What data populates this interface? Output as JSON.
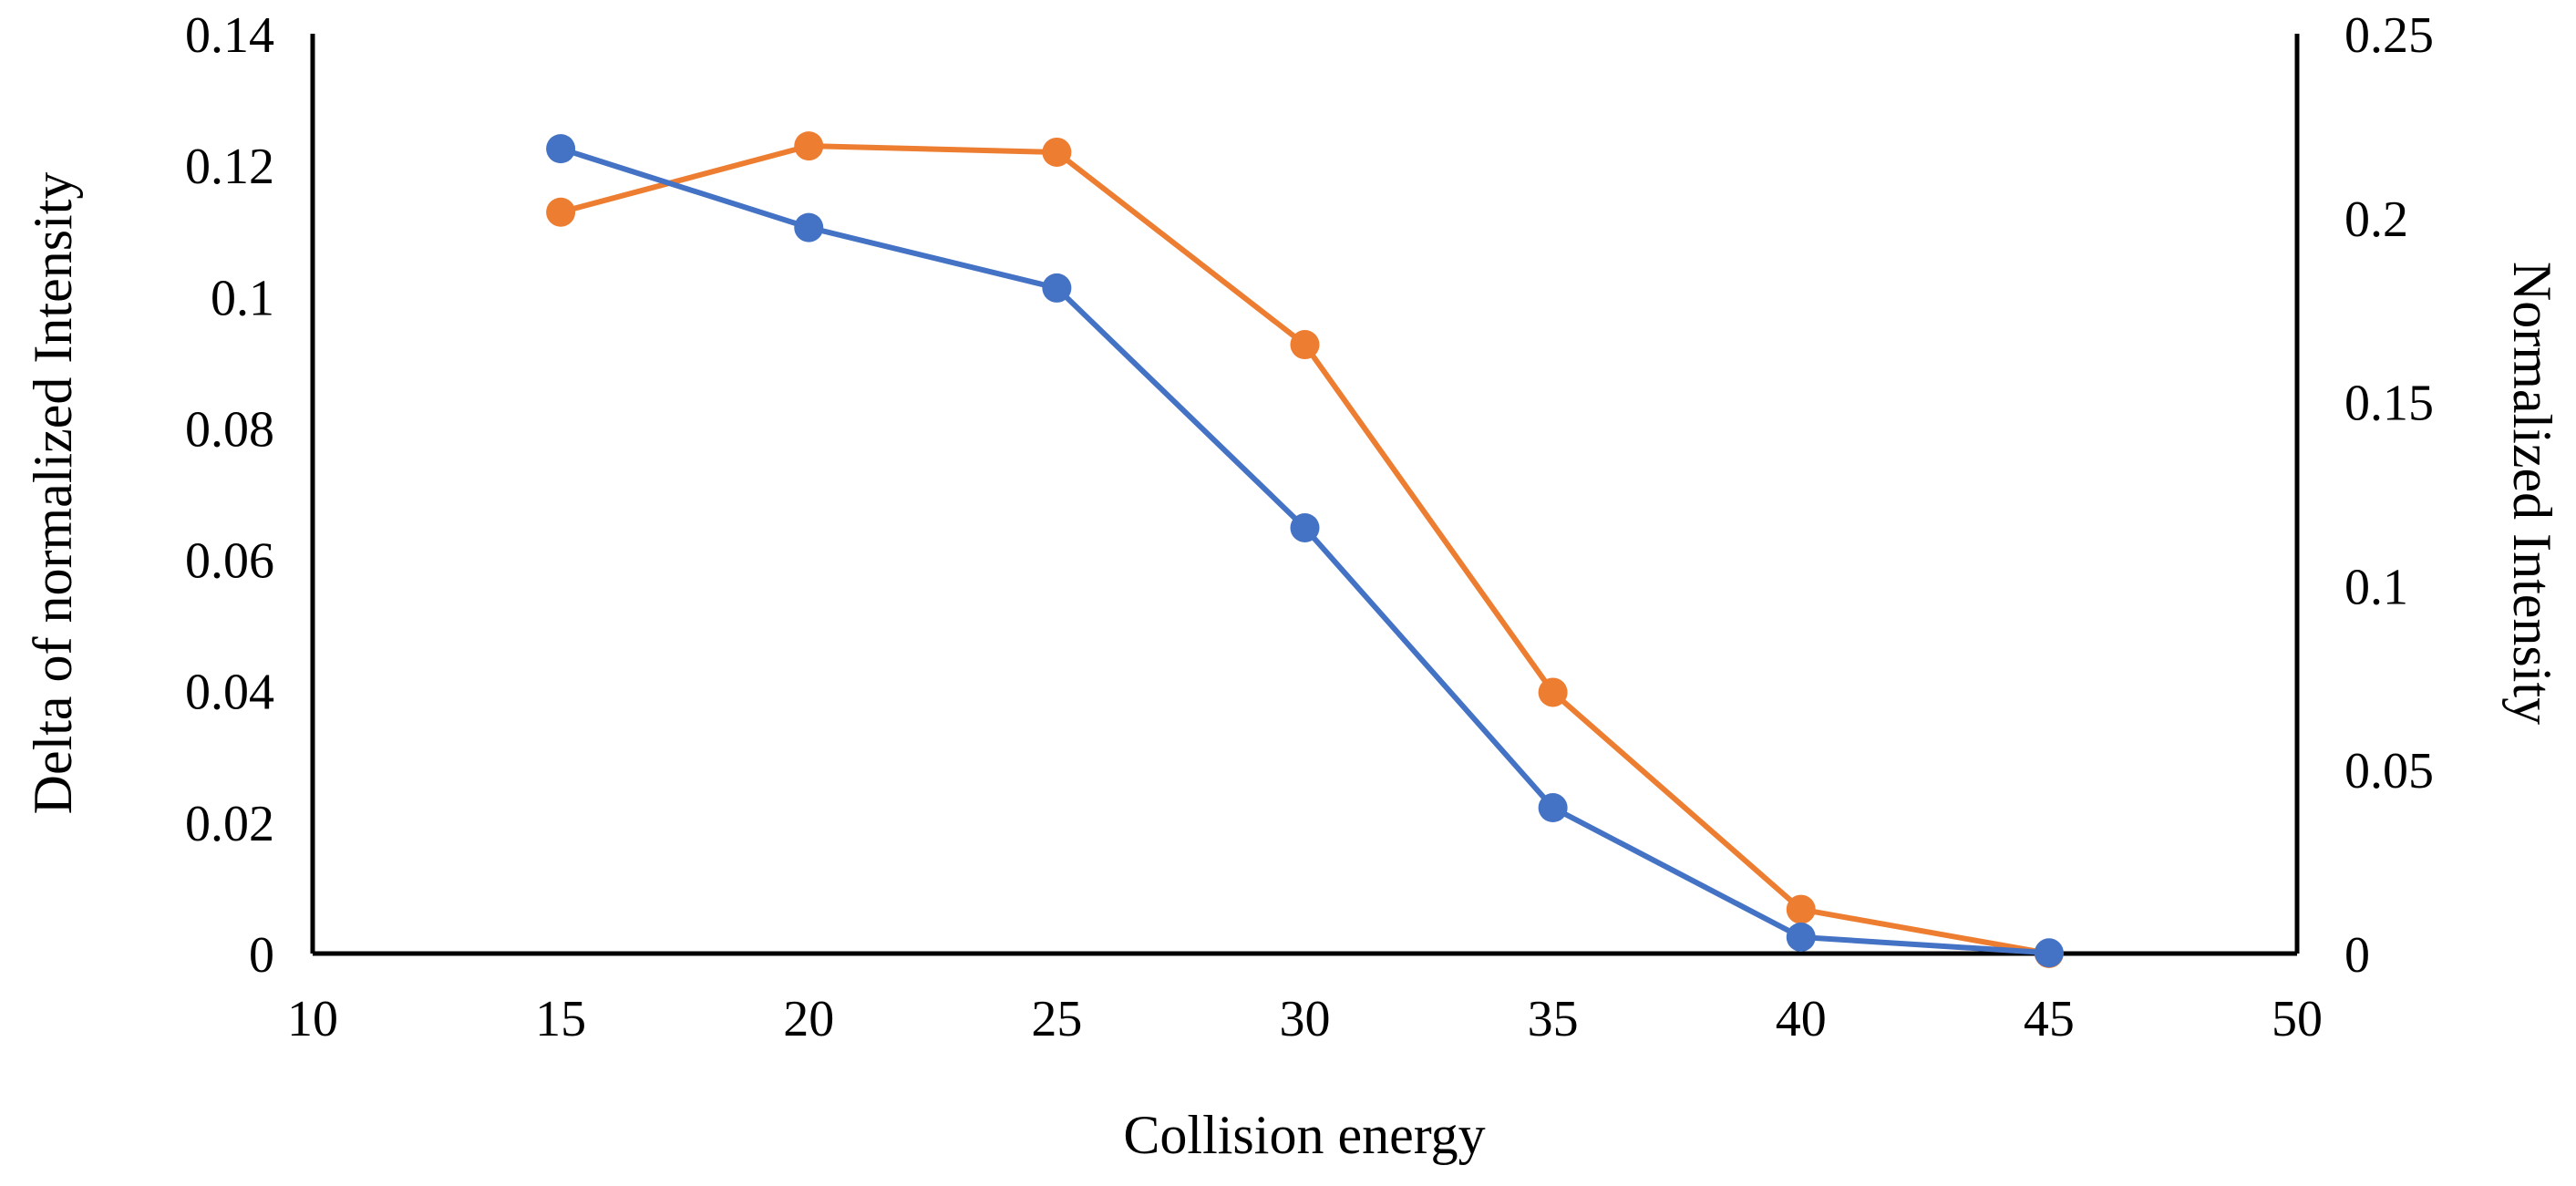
{
  "chart_data": {
    "type": "line",
    "title": "",
    "xlabel": "Collision energy",
    "ylabel_left": "Delta of normalized  Intensity",
    "ylabel_right": "Normalized  Intensity",
    "xlim": [
      10,
      50
    ],
    "ylim_left": [
      0,
      0.14
    ],
    "ylim_right": [
      0,
      0.25
    ],
    "x_ticks": [
      "10",
      "15",
      "20",
      "25",
      "30",
      "35",
      "40",
      "45",
      "50"
    ],
    "y_left_ticks": [
      "0",
      "0.02",
      "0.04",
      "0.06",
      "0.08",
      "0.1",
      "0.12",
      "0.14"
    ],
    "y_right_ticks": [
      "0",
      "0.05",
      "0.1",
      "0.15",
      "0.2",
      "0.25"
    ],
    "grid": false,
    "legend": "none",
    "series": [
      {
        "axis": "left",
        "color": "#4472C4",
        "x": [
          15,
          20,
          25,
          30,
          35,
          40,
          45
        ],
        "y": [
          0.1225,
          0.1105,
          0.1013,
          0.0648,
          0.0222,
          0.0025,
          0.0001
        ]
      },
      {
        "axis": "right",
        "color": "#ED7D31",
        "x": [
          15,
          20,
          25,
          30,
          35,
          40,
          45
        ],
        "y": [
          0.2015,
          0.2195,
          0.2178,
          0.1655,
          0.071,
          0.012,
          0.0
        ]
      }
    ]
  }
}
